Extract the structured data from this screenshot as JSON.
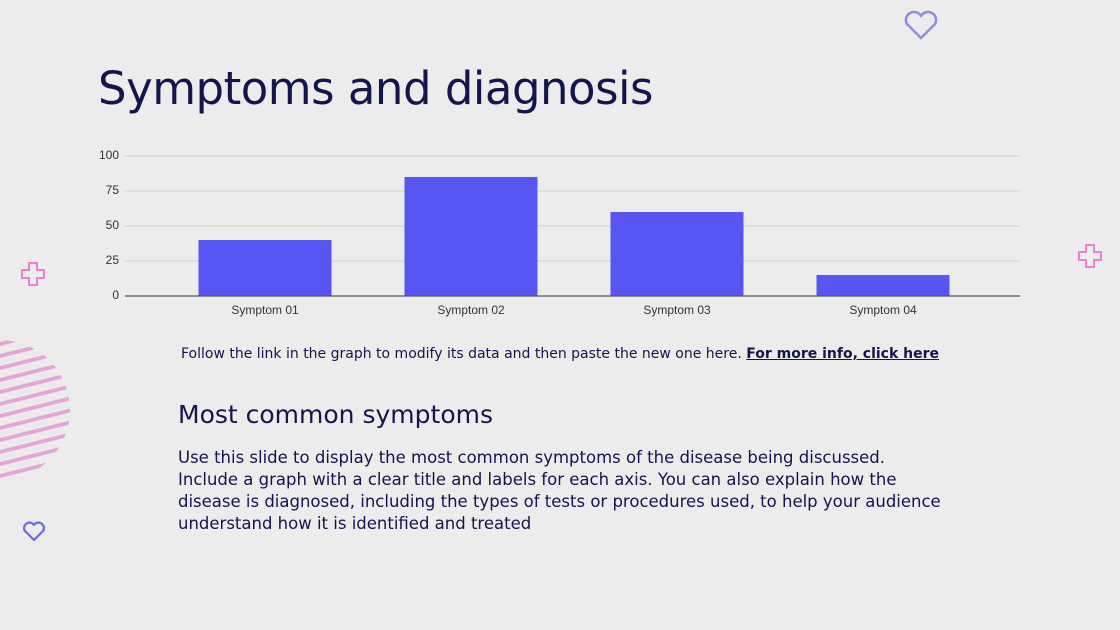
{
  "title": "Symptoms and diagnosis",
  "chart_data": {
    "type": "bar",
    "categories": [
      "Symptom 01",
      "Symptom 02",
      "Symptom 03",
      "Symptom 04"
    ],
    "values": [
      40,
      85,
      60,
      15
    ],
    "color": "#5856f2",
    "ylim": [
      0,
      100
    ],
    "yticks": [
      0,
      25,
      50,
      75,
      100
    ],
    "grid": true
  },
  "note": {
    "text": "Follow the link in the graph to modify its data and then paste the new one here.",
    "link": "For more info, click here"
  },
  "section": {
    "heading": "Most common symptoms",
    "body": "Use this slide to display the most common symptoms of the disease being discussed. Include a graph with a clear title and labels for each axis. You can also explain how the disease is diagnosed, including the types of tests or procedures used, to help your audience understand how it is identified and treated"
  }
}
